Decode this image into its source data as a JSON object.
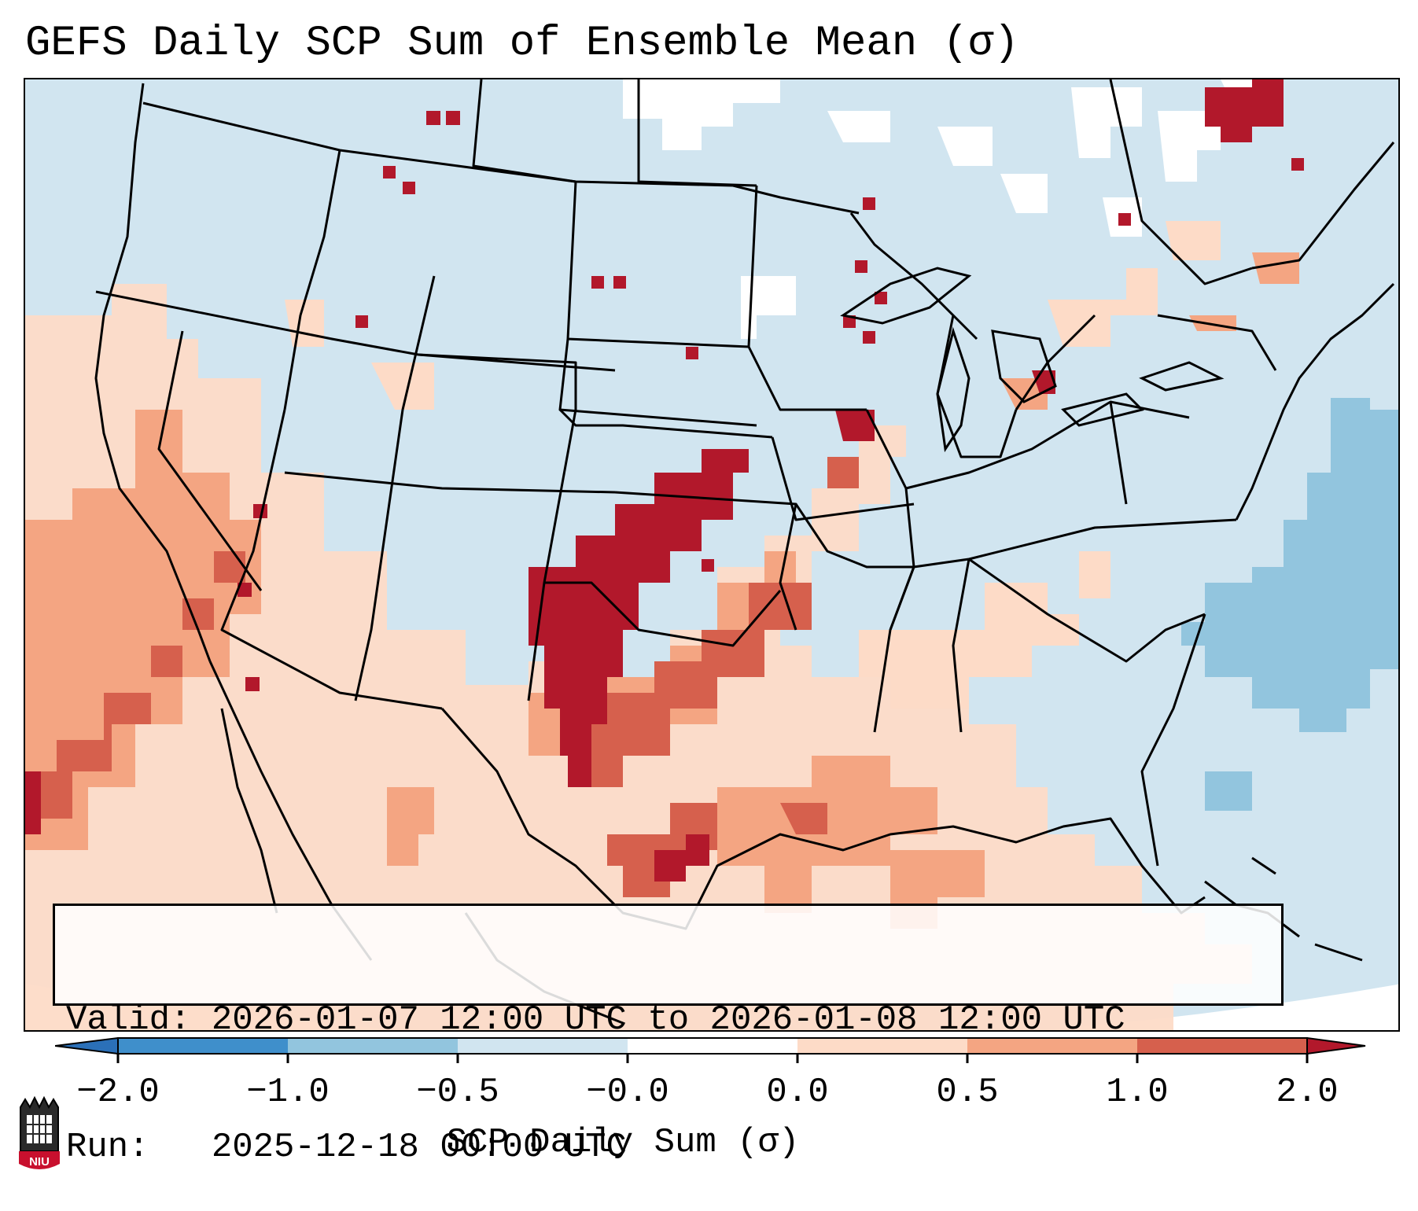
{
  "title": "GEFS Daily SCP Sum of Ensemble Mean (σ)",
  "info": {
    "valid_label": "Valid:",
    "valid_value": "2026-01-07 12:00 UTC to 2026-01-08 12:00 UTC",
    "run_label": "Run:",
    "run_value": "2025-12-18 00:00 UTC"
  },
  "colorbar": {
    "label": "SCP Daily Sum (σ)",
    "ticks": [
      "−2.0",
      "−1.0",
      "−0.5",
      "−0.0",
      "0.0",
      "0.5",
      "1.0",
      "2.0"
    ],
    "colors": [
      "#2b70b8",
      "#3f8fcb",
      "#92c5de",
      "#d1e5f0",
      "#ffffff",
      "#fddbc7",
      "#f4a582",
      "#d6604d",
      "#b2182b"
    ]
  },
  "logo": {
    "text": "NIU",
    "color": "#c8102e"
  },
  "map_colors": {
    "ocean_light": "#d1e5f0",
    "ocean_mid": "#92c5de",
    "land_light": "#d1e5f0",
    "pos_light": "#fddbc7",
    "pos_mid": "#f4a582",
    "pos_strong": "#d6604d",
    "pos_max": "#b2182b",
    "outside": "#ffffff",
    "borders": "#000000"
  }
}
